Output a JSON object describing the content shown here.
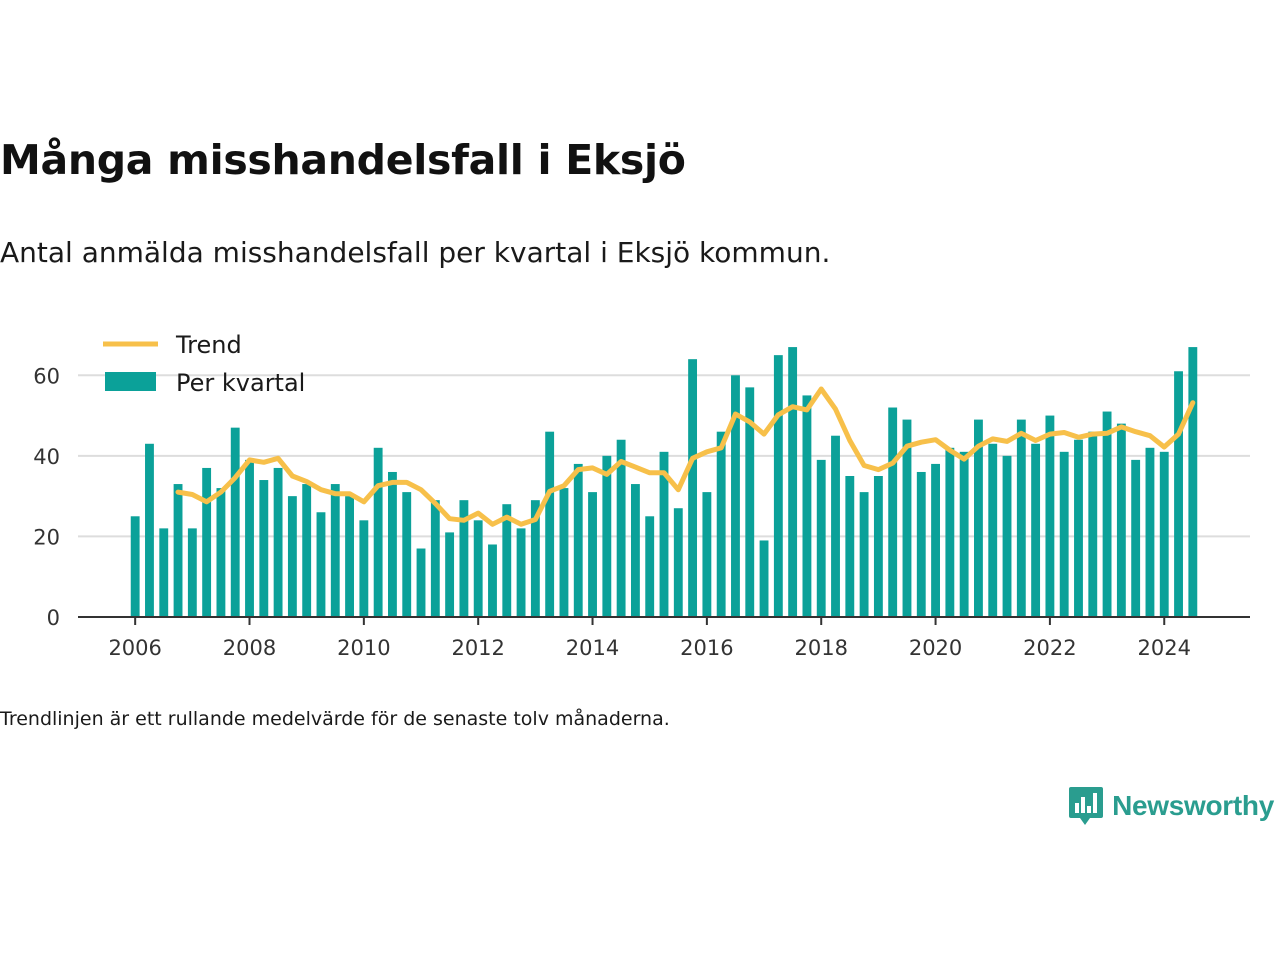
{
  "title": "Många misshandelsfall i Eksjö",
  "subtitle": "Antal anmälda misshandelsfall per kvartal i Eksjö kommun.",
  "footnote": "Trendlinjen är ett rullande medelvärde för de senaste tolv månaderna.",
  "brand": {
    "name": "Newsworthy",
    "icon": "newsworthy-logo-icon"
  },
  "colors": {
    "bars": "#0ba199",
    "trend": "#f7c04a",
    "grid": "#dddddd",
    "axis": "#333333",
    "brand": "#2a9d8f"
  },
  "chart_data": {
    "type": "bar",
    "x_unit": "quarter",
    "xlim": [
      2005,
      2025.5
    ],
    "ylim": [
      0,
      70
    ],
    "y_ticks": [
      0,
      20,
      40,
      60
    ],
    "x_ticks": [
      2006,
      2008,
      2010,
      2012,
      2014,
      2016,
      2018,
      2020,
      2022,
      2024
    ],
    "y_tick_labels": [
      "0",
      "20",
      "40",
      "60"
    ],
    "x_tick_labels": [
      "2006",
      "2008",
      "2010",
      "2012",
      "2014",
      "2016",
      "2018",
      "2020",
      "2022",
      "2024"
    ],
    "grid": true,
    "legend_position": "top-left",
    "categories": [
      "2006 Q1",
      "2006 Q2",
      "2006 Q3",
      "2006 Q4",
      "2007 Q1",
      "2007 Q2",
      "2007 Q3",
      "2007 Q4",
      "2008 Q1",
      "2008 Q2",
      "2008 Q3",
      "2008 Q4",
      "2009 Q1",
      "2009 Q2",
      "2009 Q3",
      "2009 Q4",
      "2010 Q1",
      "2010 Q2",
      "2010 Q3",
      "2010 Q4",
      "2011 Q1",
      "2011 Q2",
      "2011 Q3",
      "2011 Q4",
      "2012 Q1",
      "2012 Q2",
      "2012 Q3",
      "2012 Q4",
      "2013 Q1",
      "2013 Q2",
      "2013 Q3",
      "2013 Q4",
      "2014 Q1",
      "2014 Q2",
      "2014 Q3",
      "2014 Q4",
      "2015 Q1",
      "2015 Q2",
      "2015 Q3",
      "2015 Q4",
      "2016 Q1",
      "2016 Q2",
      "2016 Q3",
      "2016 Q4",
      "2017 Q1",
      "2017 Q2",
      "2017 Q3",
      "2017 Q4",
      "2018 Q1",
      "2018 Q2",
      "2018 Q3",
      "2018 Q4",
      "2019 Q1",
      "2019 Q2",
      "2019 Q3",
      "2019 Q4",
      "2020 Q1",
      "2020 Q2",
      "2020 Q3",
      "2020 Q4",
      "2021 Q1",
      "2021 Q2",
      "2021 Q3",
      "2021 Q4",
      "2022 Q1",
      "2022 Q2",
      "2022 Q3",
      "2022 Q4",
      "2023 Q1",
      "2023 Q2",
      "2023 Q3",
      "2023 Q4",
      "2024 Q1",
      "2024 Q2",
      "2024 Q3"
    ],
    "series": [
      {
        "name": "Per kvartal",
        "type": "bar",
        "values": [
          25,
          43,
          22,
          33,
          22,
          37,
          32,
          47,
          39,
          34,
          37,
          30,
          33,
          26,
          33,
          30,
          24,
          42,
          36,
          31,
          17,
          29,
          21,
          29,
          24,
          18,
          28,
          22,
          29,
          46,
          32,
          38,
          31,
          40,
          44,
          33,
          25,
          41,
          27,
          64,
          31,
          46,
          60,
          57,
          19,
          65,
          67,
          55,
          39,
          45,
          35,
          31,
          35,
          52,
          49,
          36,
          38,
          42,
          41,
          49,
          43,
          40,
          49,
          43,
          50,
          41,
          44,
          46,
          51,
          48,
          39,
          42,
          41,
          61,
          67
        ]
      },
      {
        "name": "Trend",
        "type": "line",
        "values": [
          null,
          null,
          null,
          31,
          30.4,
          28.6,
          31,
          34.6,
          39,
          38.4,
          39.4,
          35,
          33.6,
          31.6,
          30.6,
          30.6,
          28.6,
          32.6,
          33.4,
          33.4,
          31.6,
          28.2,
          24.4,
          24,
          25.8,
          23,
          24.8,
          23,
          24.2,
          31.2,
          32.6,
          36.6,
          37,
          35.4,
          38.6,
          37.2,
          35.8,
          35.8,
          31.6,
          39.4,
          41,
          42,
          50.4,
          48.4,
          45.4,
          50.2,
          52.2,
          51.4,
          56.6,
          51.6,
          43.8,
          37.6,
          36.6,
          38.2,
          42.4,
          43.4,
          44,
          41.4,
          39.2,
          42.4,
          44.2,
          43.6,
          45.6,
          43.8,
          45.4,
          45.8,
          44.6,
          45.4,
          45.6,
          47.2,
          46,
          45,
          42.2,
          45.4,
          53.2
        ]
      }
    ]
  }
}
